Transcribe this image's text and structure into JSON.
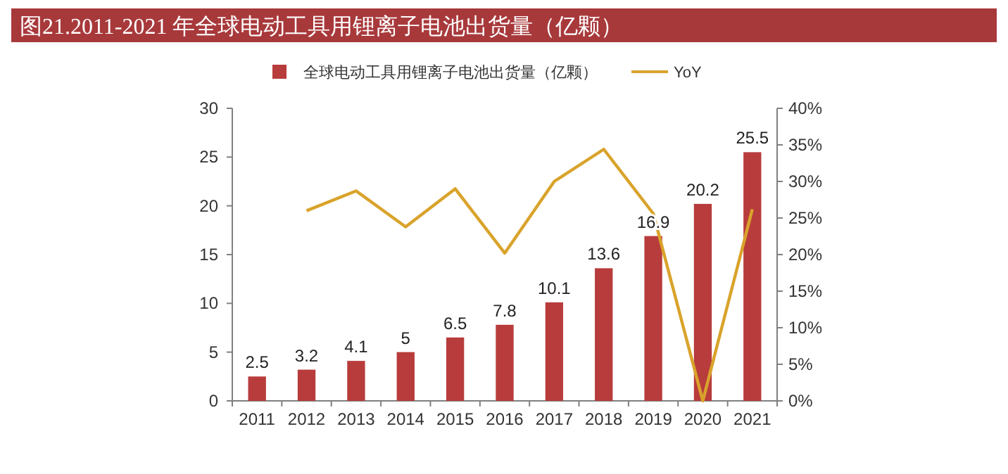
{
  "chart_data": {
    "type": "bar",
    "title": "图21.2011-2021 年全球电动工具用锂离子电池出货量（亿颗）",
    "categories": [
      "2011",
      "2012",
      "2013",
      "2014",
      "2015",
      "2016",
      "2017",
      "2018",
      "2019",
      "2020",
      "2021"
    ],
    "series": [
      {
        "name": "全球电动工具用锂离子电池出货量（亿颗）",
        "color": "#b83c3c",
        "values": [
          2.5,
          3.2,
          4.1,
          5,
          6.5,
          7.8,
          10.1,
          13.6,
          16.9,
          20.2,
          25.5
        ],
        "value_labels": [
          "2.5",
          "3.2",
          "4.1",
          "5",
          "6.5",
          "7.8",
          "10.1",
          "13.6",
          "16.9",
          "20.2",
          "25.5"
        ]
      },
      {
        "name": "YoY",
        "type": "line",
        "axis": "y2",
        "color": "#d9a32b",
        "values": [
          null,
          26,
          28.7,
          23.8,
          29,
          20.2,
          30,
          34.4,
          25.6,
          0,
          26.2
        ]
      }
    ],
    "ylim": [
      0,
      30
    ],
    "yticks": [
      0,
      5,
      10,
      15,
      20,
      25,
      30
    ],
    "y2lim": [
      0,
      40
    ],
    "y2ticks": [
      {
        "value": 0,
        "label": "0%"
      },
      {
        "value": 5,
        "label": "5%"
      },
      {
        "value": 10,
        "label": "10%"
      },
      {
        "value": 15,
        "label": "15%"
      },
      {
        "value": 20,
        "label": "20%"
      },
      {
        "value": 25,
        "label": "25%"
      },
      {
        "value": 30,
        "label": "30%"
      },
      {
        "value": 35,
        "label": "35%"
      },
      {
        "value": 40,
        "label": "40%"
      }
    ],
    "legend": "top",
    "grid": false,
    "marker": "none",
    "line_style": "solid"
  }
}
